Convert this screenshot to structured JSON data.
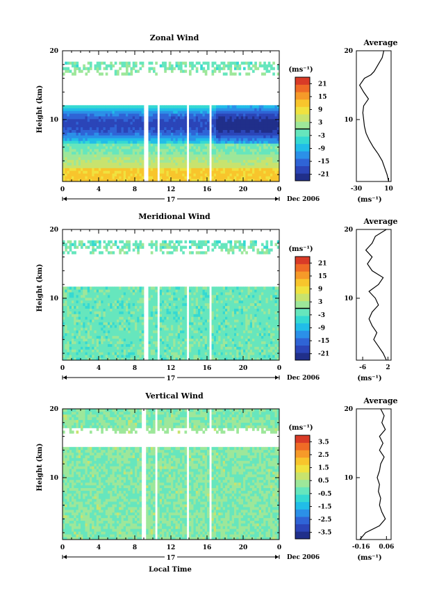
{
  "figure": {
    "x_axis_label": "Local Time",
    "date_label": "Dec 2006",
    "day_label": "17",
    "y_axis_label": "Height (km)",
    "unit_label": "(ms⁻¹)"
  },
  "chart_data": [
    {
      "type": "heatmap",
      "title": "Zonal Wind",
      "ylabel": "Height (km)",
      "xlabel": "",
      "x_ticks": [
        "0",
        "4",
        "8",
        "12",
        "16",
        "20",
        "0"
      ],
      "y_ticks": [
        "20",
        "10"
      ],
      "xlim_hours": [
        0,
        24
      ],
      "ylim_km": [
        1,
        20
      ],
      "data_gap_hours": [
        [
          9.0,
          9.4
        ],
        [
          10.5,
          10.8
        ],
        [
          13.7,
          14.1
        ],
        [
          16.3,
          16.6
        ]
      ],
      "data_gap_heights_km": [
        [
          12.0,
          16.5
        ]
      ],
      "colorbar": {
        "unit": "(ms⁻¹)",
        "ticks": [
          "21",
          "15",
          "9",
          "3",
          "-3",
          "-9",
          "-15",
          "-21"
        ],
        "range": [
          -24,
          24
        ],
        "marker_value": 0
      },
      "profile_description": "westward (negative, blue) winds centered near 8-11 km; eastward (positive, yellow/orange) winds below 5 km",
      "average_profile": {
        "title": "Average",
        "x_ticks": [
          "-30",
          "10"
        ],
        "xlim": [
          -30,
          13
        ],
        "y_ticks": [
          "20",
          "10"
        ],
        "unit": "(ms⁻¹)",
        "heights_km": [
          1,
          2,
          3,
          4,
          5,
          6,
          7,
          8,
          9,
          10,
          11,
          12,
          13,
          14,
          15,
          16,
          16.5,
          17,
          18,
          19,
          20
        ],
        "values": [
          10,
          8,
          5,
          2,
          -3,
          -9,
          -14,
          -18,
          -20,
          -21,
          -22,
          -21,
          -15,
          -21,
          -26,
          -20,
          -12,
          -8,
          -3,
          2,
          4
        ]
      }
    },
    {
      "type": "heatmap",
      "title": "Meridional Wind",
      "ylabel": "Height (km)",
      "xlabel": "",
      "x_ticks": [
        "0",
        "4",
        "8",
        "12",
        "16",
        "20",
        "0"
      ],
      "y_ticks": [
        "20",
        "10"
      ],
      "xlim_hours": [
        0,
        24
      ],
      "ylim_km": [
        1,
        20
      ],
      "data_gap_hours": [
        [
          9.0,
          9.4
        ],
        [
          10.5,
          10.8
        ],
        [
          13.7,
          14.1
        ],
        [
          16.3,
          16.6
        ]
      ],
      "data_gap_heights_km": [
        [
          11.5,
          16.5
        ]
      ],
      "colorbar": {
        "unit": "(ms⁻¹)",
        "ticks": [
          "21",
          "15",
          "9",
          "3",
          "-3",
          "-9",
          "-15",
          "-21"
        ],
        "range": [
          -24,
          24
        ],
        "marker_value": 0
      },
      "profile_description": "weak meridional winds, mostly -6 to 0 ms-1 with small positive patches",
      "average_profile": {
        "title": "Average",
        "x_ticks": [
          "-6",
          "2"
        ],
        "xlim": [
          -8,
          3
        ],
        "y_ticks": [
          "20",
          "10"
        ],
        "unit": "(ms⁻¹)",
        "heights_km": [
          1,
          2,
          3,
          4,
          5,
          6,
          7,
          8,
          9,
          10,
          11,
          12,
          13,
          14,
          15,
          16,
          17,
          18,
          19,
          20
        ],
        "values": [
          1.5,
          0.5,
          -1,
          -2.5,
          -1.5,
          -3,
          -4,
          -3,
          -1,
          -2,
          -4,
          -1,
          0.5,
          -3,
          -4.5,
          -3,
          -5,
          -3,
          -2,
          1.5
        ]
      }
    },
    {
      "type": "heatmap",
      "title": "Vertical Wind",
      "ylabel": "Height (km)",
      "xlabel": "Local Time",
      "x_ticks": [
        "0",
        "4",
        "8",
        "12",
        "16",
        "20",
        "0"
      ],
      "y_ticks": [
        "20",
        "10"
      ],
      "xlim_hours": [
        0,
        24
      ],
      "ylim_km": [
        1,
        20
      ],
      "data_gap_hours": [
        [
          8.8,
          9.2
        ],
        [
          10.2,
          10.5
        ],
        [
          13.7,
          14.1
        ],
        [
          16.3,
          16.6
        ]
      ],
      "data_gap_heights_km": [
        [
          14.5,
          16.5
        ]
      ],
      "colorbar": {
        "unit": "(ms⁻¹)",
        "ticks": [
          "3.5",
          "2.5",
          "1.5",
          "0.5",
          "-0.5",
          "-1.5",
          "-2.5",
          "-3.5"
        ],
        "range": [
          -4,
          4
        ],
        "marker_value": null
      },
      "profile_description": "near-zero vertical winds, -0.5 to 0.5 ms-1 everywhere",
      "average_profile": {
        "title": "Average",
        "x_ticks": [
          "-0.16",
          "0.06"
        ],
        "xlim": [
          -0.2,
          0.1
        ],
        "y_ticks": [
          "20",
          "10"
        ],
        "unit": "(ms⁻¹)",
        "heights_km": [
          1,
          2,
          3,
          4,
          5,
          6,
          7,
          8,
          9,
          10,
          11,
          12,
          13,
          14,
          15,
          16,
          17,
          18,
          19,
          20
        ],
        "values": [
          -0.17,
          -0.12,
          0.0,
          0.05,
          0.02,
          0.0,
          0.01,
          -0.01,
          0.0,
          -0.02,
          0.0,
          0.01,
          0.04,
          0.0,
          0.03,
          0.0,
          0.05,
          0.02,
          0.04,
          0.01
        ]
      }
    }
  ]
}
